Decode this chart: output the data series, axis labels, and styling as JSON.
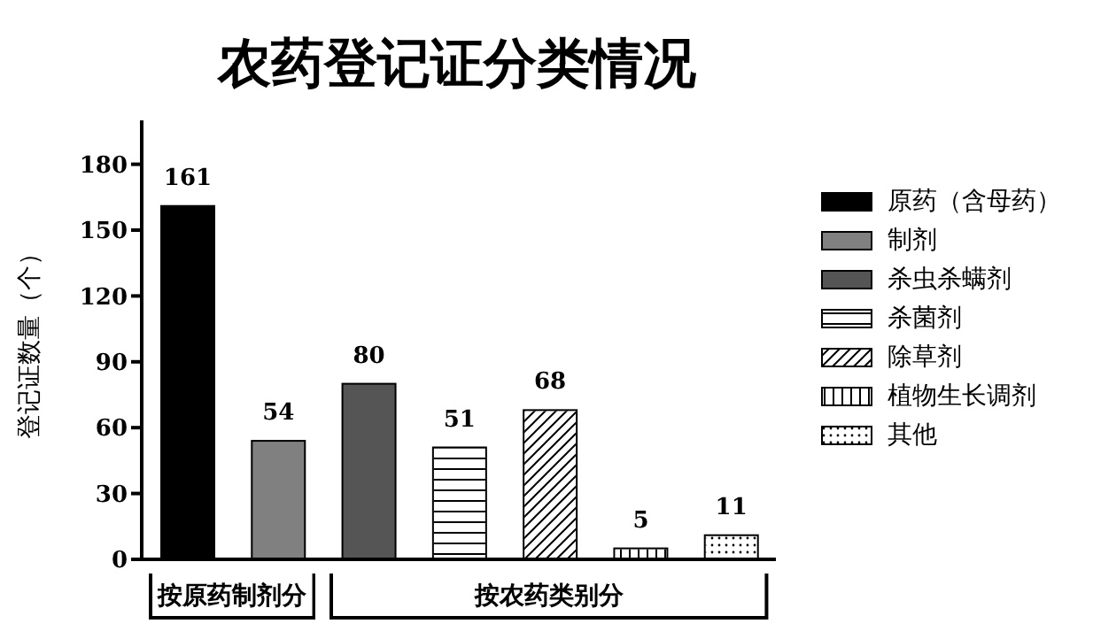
{
  "chart_data": {
    "type": "bar",
    "title": "农药登记证分类情况",
    "ylabel": "登记证数量（个）",
    "categories": [
      null,
      null,
      null,
      null,
      null,
      null,
      null
    ],
    "series": [
      {
        "name": "原药（含母药）",
        "color": "#000000",
        "values": [
          161,
          null,
          null,
          null,
          null,
          null,
          null
        ]
      },
      {
        "name": "制剂",
        "color": "#808080",
        "values": [
          null,
          54,
          null,
          null,
          null,
          null,
          null
        ]
      },
      {
        "name": "杀虫杀螨剂",
        "color": "#555555",
        "values": [
          null,
          null,
          80,
          null,
          null,
          null,
          null
        ]
      },
      {
        "name": "杀菌剂",
        "color": "#ffffff",
        "values": [
          null,
          null,
          null,
          51,
          null,
          null,
          null
        ]
      },
      {
        "name": "除草剂",
        "color": "#ffffff",
        "values": [
          null,
          null,
          null,
          null,
          68,
          null,
          null
        ]
      },
      {
        "name": "植物生长调剂",
        "color": "#ffffff",
        "values": [
          null,
          null,
          null,
          null,
          null,
          5,
          null
        ]
      },
      {
        "name": "其他",
        "color": "#ffffff",
        "values": [
          null,
          null,
          null,
          null,
          null,
          null,
          11
        ]
      }
    ],
    "annotations": [
      "按原药制剂分",
      "按农药类别分"
    ],
    "ylim": [
      0,
      200
    ],
    "yticks": [
      0,
      30,
      60,
      90,
      120,
      150,
      180
    ],
    "data_labels": true,
    "legend": "right",
    "grid": false
  }
}
